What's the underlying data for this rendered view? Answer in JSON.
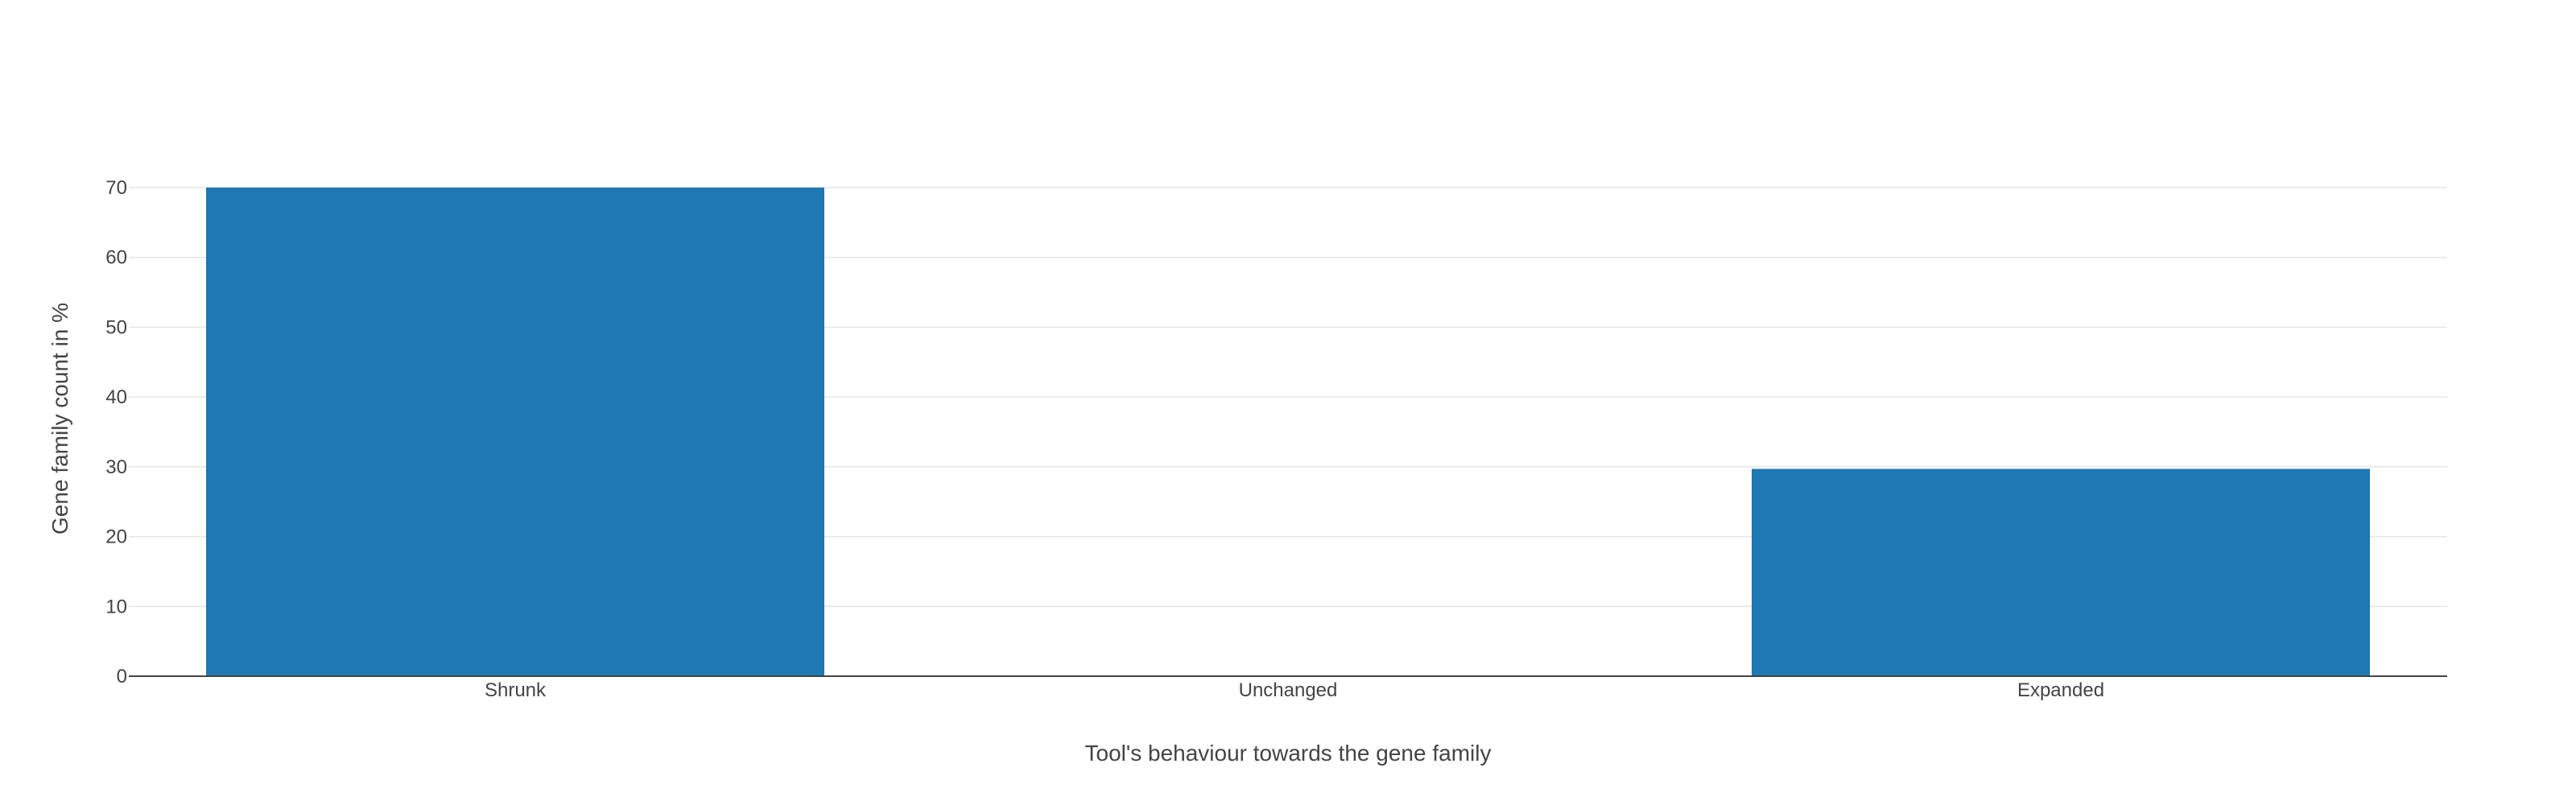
{
  "chart_data": {
    "type": "bar",
    "title": "",
    "xlabel": "Tool's behaviour towards the gene family",
    "ylabel": "Gene family count in %",
    "categories": [
      "Shrunk",
      "Unchanged",
      "Expanded"
    ],
    "values": [
      70,
      0,
      29.7
    ],
    "ylim": [
      0,
      70
    ],
    "yticks": [
      0,
      10,
      20,
      30,
      40,
      50,
      60,
      70
    ],
    "grid": true,
    "legend": "none",
    "colors": {
      "bar": "#1f77b4",
      "grid": "#e6e6e6",
      "axis": "#444444"
    }
  }
}
